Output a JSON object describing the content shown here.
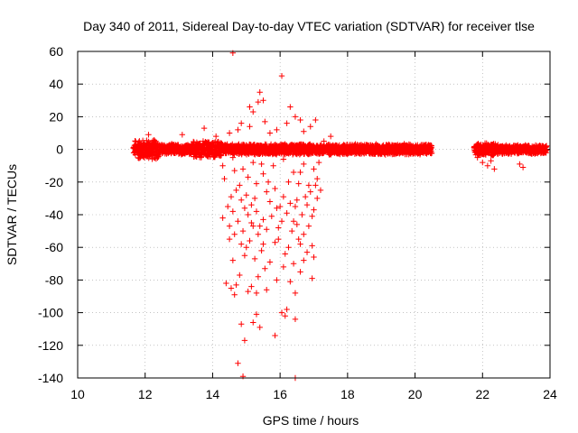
{
  "chart_data": {
    "type": "scatter",
    "title": "Day 340 of 2011, Sidereal Day-to-day VTEC variation (SDTVAR) for receiver tlse",
    "xlabel": "GPS time / hours",
    "ylabel": "SDTVAR / TECUs",
    "xlim": [
      10,
      24
    ],
    "ylim": [
      -140,
      60
    ],
    "xticks": [
      10,
      12,
      14,
      16,
      18,
      20,
      22,
      24
    ],
    "yticks": [
      -140,
      -120,
      -100,
      -80,
      -60,
      -40,
      -20,
      0,
      20,
      40,
      60
    ],
    "grid": true,
    "marker": "+",
    "series_color": "#ff0000",
    "bands": [
      {
        "x_start": 11.65,
        "x_end": 20.5,
        "center": 0,
        "spread": 3.5
      },
      {
        "x_start": 21.75,
        "x_end": 23.9,
        "center": 0,
        "spread": 3.0
      }
    ],
    "band_noise_ranges": [
      {
        "x_start": 11.7,
        "x_end": 12.4,
        "spread": 6.5
      },
      {
        "x_start": 13.4,
        "x_end": 14.3,
        "spread": 5.5
      },
      {
        "x_start": 21.8,
        "x_end": 22.5,
        "spread": 4
      }
    ],
    "points": [
      [
        14.6,
        59
      ],
      [
        16.05,
        45
      ],
      [
        15.4,
        35
      ],
      [
        15.35,
        29
      ],
      [
        16.3,
        26
      ],
      [
        15.1,
        26
      ],
      [
        15.5,
        30
      ],
      [
        13.75,
        13
      ],
      [
        15.2,
        23
      ],
      [
        15.55,
        17
      ],
      [
        16.6,
        18
      ],
      [
        14.85,
        16
      ],
      [
        15.9,
        12
      ],
      [
        16.9,
        14
      ],
      [
        17.05,
        18
      ],
      [
        16.45,
        20
      ],
      [
        15.1,
        14
      ],
      [
        16.7,
        11
      ],
      [
        14.5,
        10
      ],
      [
        16.2,
        16
      ],
      [
        15.7,
        10
      ],
      [
        14.75,
        12
      ],
      [
        12.1,
        9
      ],
      [
        17.3,
        5
      ],
      [
        17.5,
        8
      ],
      [
        13.1,
        9
      ],
      [
        14.1,
        8
      ],
      [
        14.3,
        -10
      ],
      [
        14.6,
        -5
      ],
      [
        14.9,
        -12
      ],
      [
        15.2,
        -8
      ],
      [
        15.5,
        -15
      ],
      [
        15.8,
        -10
      ],
      [
        16.1,
        -6
      ],
      [
        16.4,
        -14
      ],
      [
        16.7,
        -9
      ],
      [
        17.0,
        -12
      ],
      [
        17.1,
        -18
      ],
      [
        15.05,
        -17
      ],
      [
        16.25,
        -20
      ],
      [
        14.65,
        -13
      ],
      [
        15.55,
        -2
      ],
      [
        16.85,
        -3
      ],
      [
        15.45,
        -9
      ],
      [
        16.6,
        -14
      ],
      [
        17.15,
        -8
      ],
      [
        14.8,
        -22
      ],
      [
        15.3,
        -21
      ],
      [
        16.55,
        -21
      ],
      [
        17.05,
        -22
      ],
      [
        17.2,
        -25
      ],
      [
        16.9,
        -26
      ],
      [
        16.75,
        -29
      ],
      [
        17.1,
        -30
      ],
      [
        16.5,
        -31
      ],
      [
        14.7,
        -25
      ],
      [
        15.0,
        -28
      ],
      [
        15.25,
        -30
      ],
      [
        15.6,
        -26
      ],
      [
        15.85,
        -24
      ],
      [
        16.1,
        -29
      ],
      [
        16.3,
        -33
      ],
      [
        14.55,
        -29
      ],
      [
        14.85,
        -31
      ],
      [
        15.15,
        -34
      ],
      [
        15.7,
        -32
      ],
      [
        16.45,
        -35
      ],
      [
        16.8,
        -34
      ],
      [
        17.0,
        -37
      ],
      [
        14.45,
        -35
      ],
      [
        14.95,
        -36
      ],
      [
        15.3,
        -38
      ],
      [
        15.9,
        -36
      ],
      [
        16.2,
        -39
      ],
      [
        16.65,
        -40
      ],
      [
        16.95,
        -41
      ],
      [
        14.6,
        -38
      ],
      [
        15.05,
        -40
      ],
      [
        15.5,
        -43
      ],
      [
        15.75,
        -41
      ],
      [
        16.05,
        -44
      ],
      [
        16.5,
        -46
      ],
      [
        16.85,
        -47
      ],
      [
        14.3,
        -42
      ],
      [
        14.75,
        -44
      ],
      [
        15.2,
        -47
      ],
      [
        15.6,
        -49
      ],
      [
        16.35,
        -50
      ],
      [
        16.7,
        -52
      ],
      [
        14.9,
        -50
      ],
      [
        15.35,
        -52
      ],
      [
        15.95,
        -55
      ],
      [
        16.55,
        -55
      ],
      [
        14.65,
        -52
      ],
      [
        15.1,
        -56
      ],
      [
        15.5,
        -58
      ],
      [
        15.85,
        -57
      ],
      [
        16.25,
        -60
      ],
      [
        16.95,
        -59
      ],
      [
        14.5,
        -55
      ],
      [
        15.45,
        -62
      ],
      [
        16.15,
        -64
      ],
      [
        16.8,
        -63
      ],
      [
        17.0,
        -66
      ],
      [
        14.95,
        -65
      ],
      [
        15.25,
        -67
      ],
      [
        15.7,
        -69
      ],
      [
        16.4,
        -70
      ],
      [
        14.6,
        -68
      ],
      [
        15.55,
        -73
      ],
      [
        16.6,
        -75
      ],
      [
        14.8,
        -77
      ],
      [
        15.35,
        -78
      ],
      [
        15.9,
        -80
      ],
      [
        16.3,
        -81
      ],
      [
        16.95,
        -79
      ],
      [
        14.7,
        -83
      ],
      [
        15.15,
        -84
      ],
      [
        15.6,
        -86
      ],
      [
        16.45,
        -88
      ],
      [
        14.55,
        -85
      ],
      [
        15.3,
        -88
      ],
      [
        14.4,
        -82
      ],
      [
        14.65,
        -89
      ],
      [
        15.05,
        -87
      ],
      [
        16.2,
        -98
      ],
      [
        16.05,
        -100
      ],
      [
        15.3,
        -101
      ],
      [
        16.45,
        -104
      ],
      [
        14.85,
        -107
      ],
      [
        15.4,
        -109
      ],
      [
        15.85,
        -114
      ],
      [
        14.95,
        -117
      ],
      [
        14.75,
        -131
      ],
      [
        14.9,
        -139
      ],
      [
        16.45,
        -140
      ],
      [
        15.2,
        -106
      ],
      [
        16.15,
        -102
      ],
      [
        16.6,
        -58
      ],
      [
        16.4,
        -44
      ],
      [
        14.5,
        -47
      ],
      [
        15.95,
        -48
      ],
      [
        15.0,
        -60
      ],
      [
        16.1,
        -72
      ],
      [
        15.4,
        -47
      ],
      [
        16.85,
        -22
      ],
      [
        14.35,
        -18
      ],
      [
        15.65,
        -20
      ],
      [
        16.0,
        -35
      ],
      [
        15.15,
        -45
      ],
      [
        14.85,
        -58
      ],
      [
        16.7,
        -68
      ],
      [
        22.0,
        -8
      ],
      [
        22.15,
        -10
      ],
      [
        22.35,
        -12
      ],
      [
        23.1,
        -9
      ],
      [
        21.85,
        -5
      ],
      [
        22.25,
        -7
      ],
      [
        23.2,
        -11
      ]
    ]
  }
}
